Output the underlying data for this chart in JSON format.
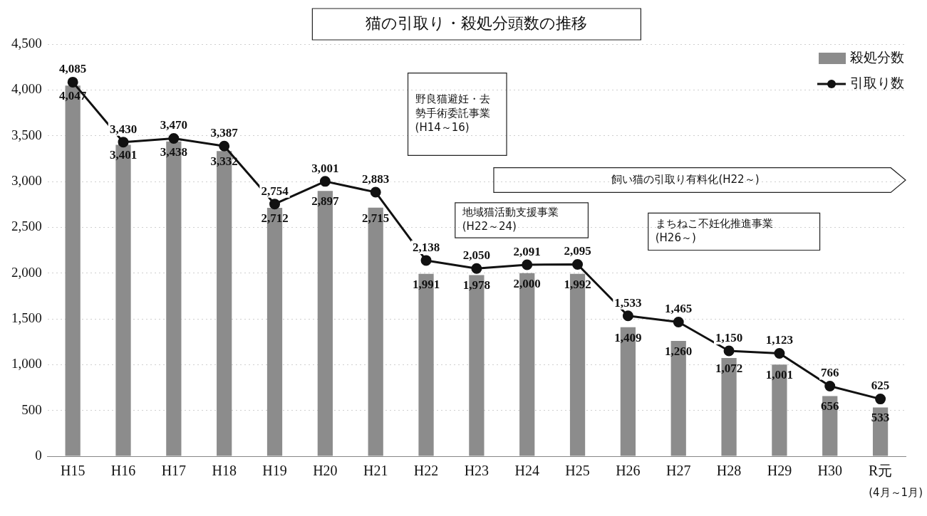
{
  "chart_data": {
    "type": "bar",
    "title": "猫の引取り・殺処分頭数の推移",
    "categories": [
      "H15",
      "H16",
      "H17",
      "H18",
      "H19",
      "H20",
      "H21",
      "H22",
      "H23",
      "H24",
      "H25",
      "H26",
      "H27",
      "H28",
      "H29",
      "H30",
      "R元"
    ],
    "series": [
      {
        "name": "殺処分数",
        "color": "#8c8c8c",
        "values": [
          4047,
          3401,
          3438,
          3332,
          2712,
          2897,
          2715,
          1991,
          1978,
          2000,
          1992,
          1409,
          1260,
          1072,
          1001,
          656,
          533
        ],
        "value_labels": [
          "4,047",
          "3,401",
          "3,438",
          "3,332",
          "2,712",
          "2,897",
          "2,715",
          "1,991",
          "1,978",
          "2,000",
          "1,992",
          "1,409",
          "1,260",
          "1,072",
          "1,001",
          "656",
          "533"
        ]
      },
      {
        "name": "引取り数",
        "type": "line",
        "color": "#111111",
        "values": [
          4085,
          3430,
          3470,
          3387,
          2754,
          3001,
          2883,
          2138,
          2050,
          2091,
          2095,
          1533,
          1465,
          1150,
          1123,
          766,
          625
        ],
        "value_labels": [
          "4,085",
          "3,430",
          "3,470",
          "3,387",
          "2,754",
          "3,001",
          "2,883",
          "2,138",
          "2,050",
          "2,091",
          "2,095",
          "1,533",
          "1,465",
          "1,150",
          "1,123",
          "766",
          "625"
        ]
      }
    ],
    "ylim": [
      0,
      4500
    ],
    "yticks": [
      {
        "value": 0,
        "label": "0"
      },
      {
        "value": 500,
        "label": "500"
      },
      {
        "value": 1000,
        "label": "1,000"
      },
      {
        "value": 1500,
        "label": "1,500"
      },
      {
        "value": 2000,
        "label": "2,000"
      },
      {
        "value": 2500,
        "label": "2,500"
      },
      {
        "value": 3000,
        "label": "3,000"
      },
      {
        "value": 3500,
        "label": "3,500"
      },
      {
        "value": 4000,
        "label": "4,000"
      },
      {
        "value": 4500,
        "label": "4,500"
      }
    ],
    "grid": "y",
    "legend": "top right",
    "marker": "circle",
    "line_style": "solid",
    "annotations": [
      "野良猫避妊・去勢手術委託事業(H14～16)",
      "飼い猫の引取り有料化(H22～)",
      "地域猫活動支援事業(H22～24)",
      "まちねこ不妊化推進事業(H26～)",
      "(4月～1月)"
    ]
  }
}
